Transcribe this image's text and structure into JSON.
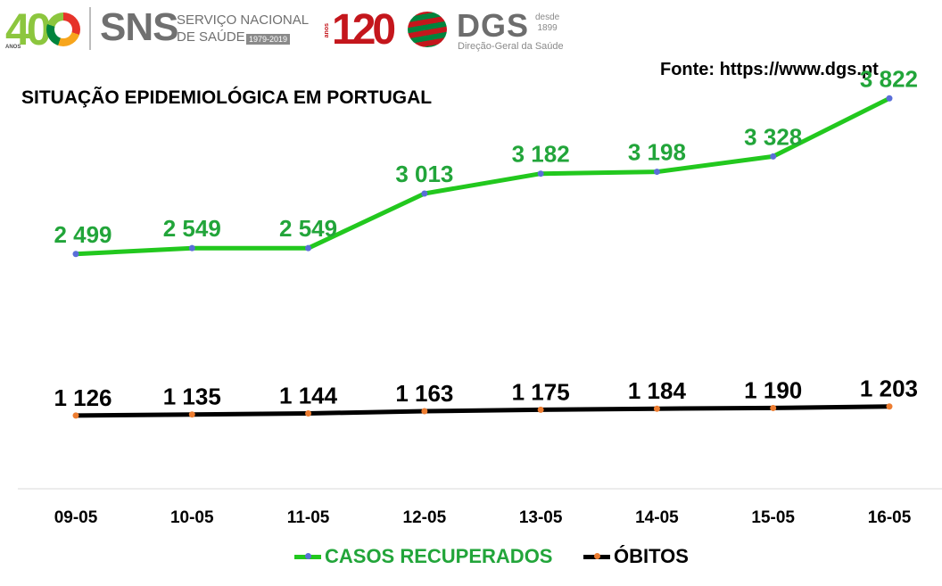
{
  "header": {
    "logo_40": {
      "number": "40",
      "sub": "ANOS"
    },
    "sns": {
      "name": "SNS",
      "line1": "SERVIÇO NACIONAL",
      "line2": "DE SAÚDE",
      "years": "1979-2019"
    },
    "logo_120": {
      "number": "120",
      "sub": "anos"
    },
    "dgs": {
      "name": "DGS",
      "since_label": "desde",
      "since_year": "1899",
      "subtitle": "Direção-Geral da Saúde"
    }
  },
  "source": "Fonte: https://www.dgs.pt",
  "colors": {
    "recovered": "#22c81e",
    "recovered_label": "#22a53a",
    "deaths": "#000000",
    "deaths_label": "#000000",
    "recovered_marker": "#5a6ed8",
    "deaths_marker": "#ed7d31",
    "axis": "#d9d9d9"
  },
  "chart_data": {
    "type": "line",
    "title": "SITUAÇÃO EPIDEMIOLÓGICA EM PORTUGAL",
    "categories": [
      "09-05",
      "10-05",
      "11-05",
      "12-05",
      "13-05",
      "14-05",
      "15-05",
      "16-05"
    ],
    "series": [
      {
        "name": "CASOS RECUPERADOS",
        "values": [
          2499,
          2549,
          2549,
          3013,
          3182,
          3198,
          3328,
          3822
        ],
        "labels": [
          "2 499",
          "2 549",
          "2 549",
          "3 013",
          "3 182",
          "3 198",
          "3 328",
          "3 822"
        ]
      },
      {
        "name": "ÓBITOS",
        "values": [
          1126,
          1135,
          1144,
          1163,
          1175,
          1184,
          1190,
          1203
        ],
        "labels": [
          "1 126",
          "1 135",
          "1 144",
          "1 163",
          "1 175",
          "1 184",
          "1 190",
          "1 203"
        ]
      }
    ],
    "xlabel": "",
    "ylabel": "",
    "ylim": [
      650,
      4000
    ],
    "grid": false,
    "legend": "bottom"
  }
}
